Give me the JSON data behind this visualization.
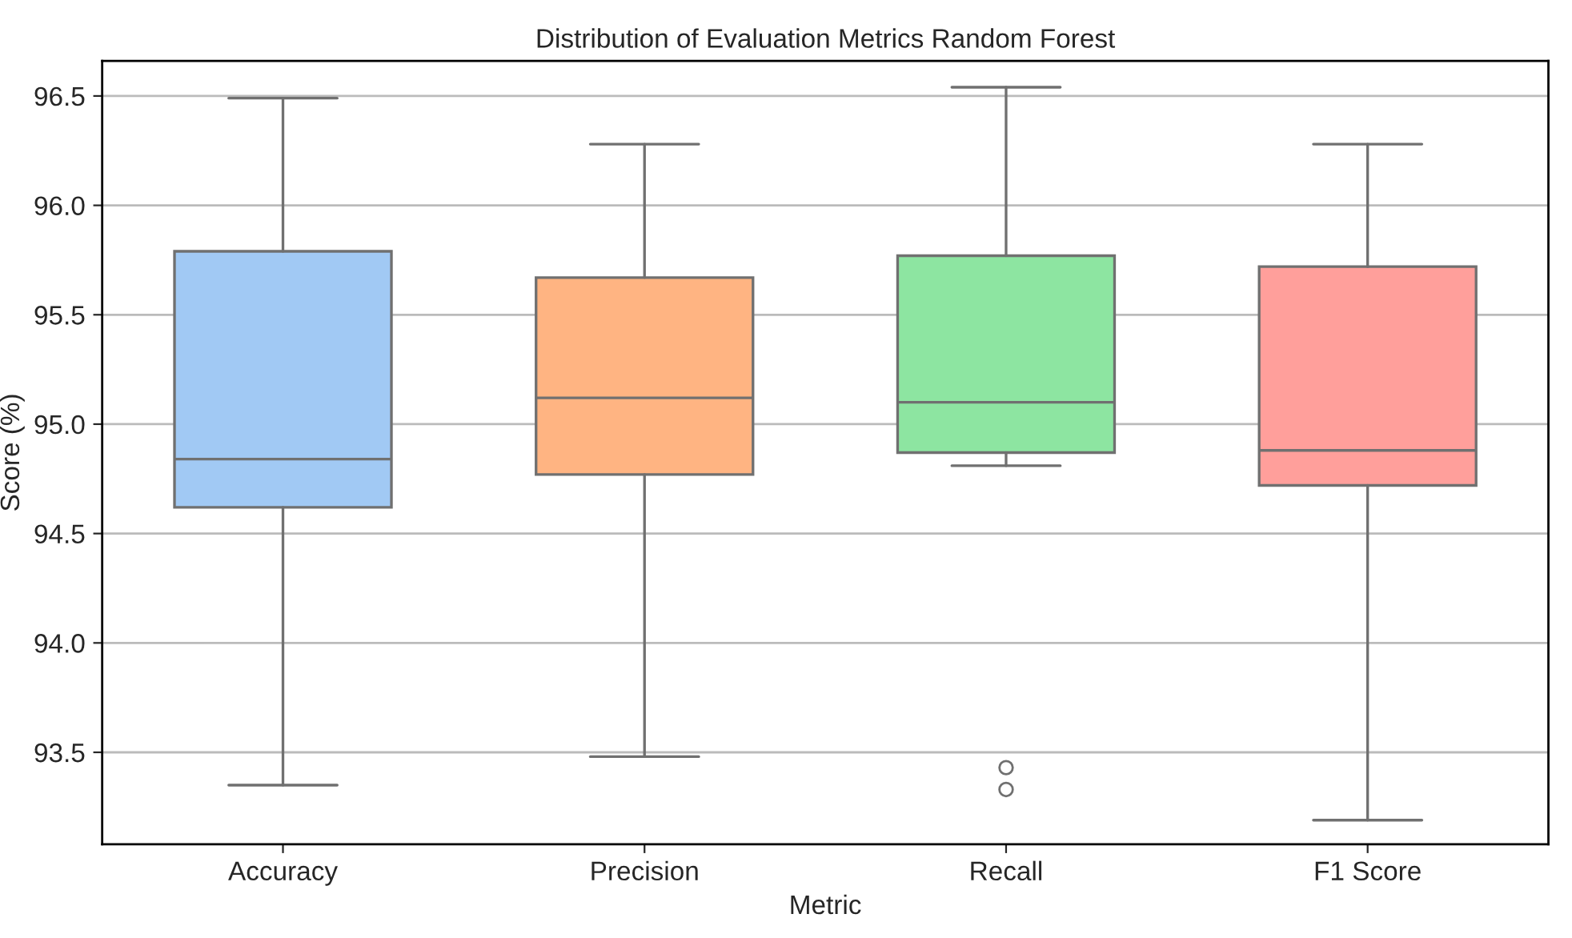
{
  "chart_data": {
    "type": "box",
    "title": "Distribution of Evaluation Metrics Random Forest",
    "xlabel": "Metric",
    "ylabel": "Score (%)",
    "categories": [
      "Accuracy",
      "Precision",
      "Recall",
      "F1 Score"
    ],
    "colors": [
      "#a1c9f4",
      "#ffb482",
      "#8de5a1",
      "#ff9f9b"
    ],
    "boxes": [
      {
        "low": 93.35,
        "q1": 94.62,
        "median": 94.84,
        "q3": 95.79,
        "high": 96.49
      },
      {
        "low": 93.48,
        "q1": 94.77,
        "median": 95.12,
        "q3": 95.67,
        "high": 96.28
      },
      {
        "low": 94.81,
        "q1": 94.87,
        "median": 95.1,
        "q3": 95.77,
        "high": 96.54,
        "outliers": [
          93.43,
          93.33
        ]
      },
      {
        "low": 93.19,
        "q1": 94.72,
        "median": 94.88,
        "q3": 95.72,
        "high": 96.28
      }
    ],
    "ylim": [
      93.08,
      96.66
    ],
    "yticks": [
      93.5,
      {
        "value": 94,
        "label": "94.0"
      },
      94.5,
      {
        "value": 95,
        "label": "95.0"
      },
      95.5,
      {
        "value": 96,
        "label": "96.0"
      },
      96.5
    ],
    "grid": "y"
  }
}
